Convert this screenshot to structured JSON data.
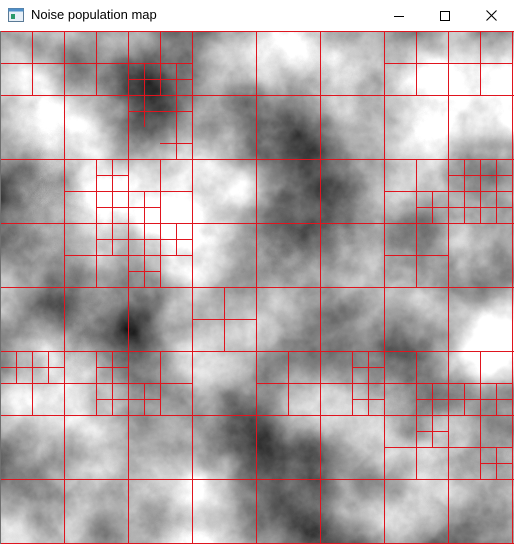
{
  "window": {
    "title": "Noise population map",
    "app_icon": "window-app-icon",
    "controls": {
      "minimize_icon": "minimize-icon",
      "maximize_icon": "maximize-icon",
      "close_icon": "close-icon"
    }
  },
  "map": {
    "background": "grayscale-noise",
    "grid_color": "#e0141e"
  }
}
